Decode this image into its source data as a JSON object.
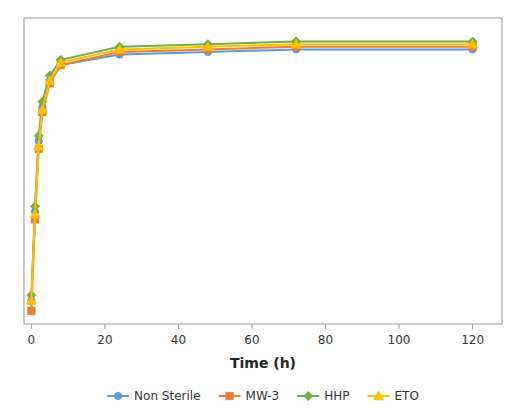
{
  "chart_data": {
    "type": "line",
    "xlabel": "Time (h)",
    "x": [
      0,
      1,
      2,
      3,
      5,
      8,
      24,
      48,
      72,
      120
    ],
    "series": [
      {
        "name": "Non Sterile",
        "color": "#5b9bd5",
        "marker": "circle",
        "values": [
          -0.06,
          0.28,
          0.55,
          0.68,
          0.78,
          0.84,
          0.88,
          0.89,
          0.9,
          0.9
        ]
      },
      {
        "name": "MW-3",
        "color": "#ed7d31",
        "marker": "square",
        "values": [
          -0.1,
          0.25,
          0.52,
          0.66,
          0.77,
          0.84,
          0.89,
          0.9,
          0.91,
          0.91
        ]
      },
      {
        "name": "HHP",
        "color": "#70ad47",
        "marker": "diamond",
        "values": [
          -0.04,
          0.3,
          0.57,
          0.7,
          0.8,
          0.86,
          0.91,
          0.92,
          0.93,
          0.93
        ]
      },
      {
        "name": "ETO",
        "color": "#ffc000",
        "marker": "triangle",
        "values": [
          -0.06,
          0.27,
          0.53,
          0.67,
          0.78,
          0.85,
          0.9,
          0.91,
          0.92,
          0.92
        ]
      }
    ],
    "xlim": [
      -2,
      128
    ],
    "ylim": [
      -0.15,
      1.02
    ],
    "xticks": [
      0,
      20,
      40,
      60,
      80,
      100,
      120
    ],
    "grid": false,
    "legend": "bottom",
    "tick_labels": "x"
  }
}
